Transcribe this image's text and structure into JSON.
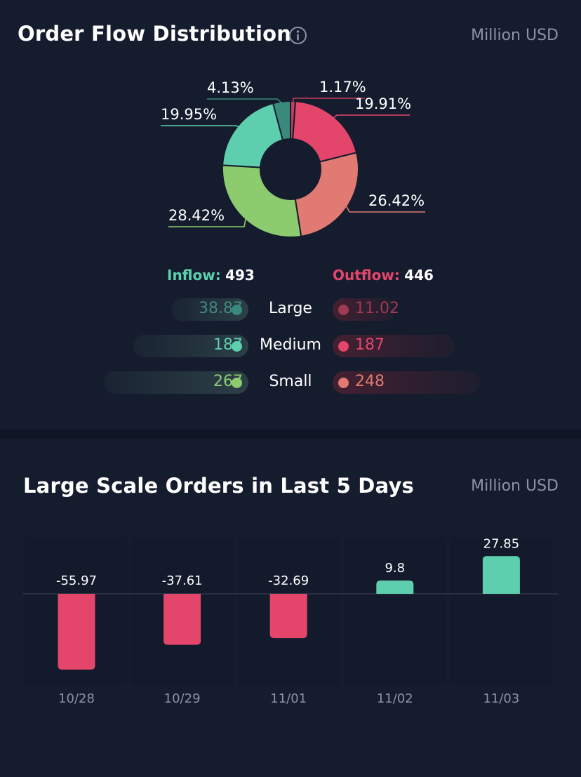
{
  "header1": {
    "title": "Order Flow Distribution",
    "unit": "Million USD",
    "info_icon": "info-circle-icon"
  },
  "header2": {
    "title": "Large Scale Orders in Last 5 Days",
    "unit": "Million USD"
  },
  "flow": {
    "inflow_label": "Inflow:",
    "inflow_value": "493",
    "outflow_label": "Outflow:",
    "outflow_value": "446",
    "rows": [
      {
        "label": "Large",
        "inflow": "38.87",
        "outflow": "11.02",
        "in_color": "#3a8a7c",
        "out_color": "#a03a52",
        "in_text": "#3f8a7f",
        "out_text": "#9e3a52"
      },
      {
        "label": "Medium",
        "inflow": "187",
        "outflow": "187",
        "in_color": "#5ecfae",
        "out_color": "#e4466b",
        "in_text": "#5ecfae",
        "out_text": "#e4466b"
      },
      {
        "label": "Small",
        "inflow": "267",
        "outflow": "248",
        "in_color": "#8ccb6e",
        "out_color": "#e07a72",
        "in_text": "#8ccb6e",
        "out_text": "#e07a72"
      }
    ]
  },
  "chart_data": [
    {
      "type": "pie",
      "donut": true,
      "slices": [
        {
          "label": "1.17%",
          "value": 1.17,
          "color": "#c63c5a"
        },
        {
          "label": "19.91%",
          "value": 19.91,
          "color": "#e4466b"
        },
        {
          "label": "26.42%",
          "value": 26.42,
          "color": "#e07a72"
        },
        {
          "label": "28.42%",
          "value": 28.42,
          "color": "#8ccb6e"
        },
        {
          "label": "19.95%",
          "value": 19.95,
          "color": "#5ecfae"
        },
        {
          "label": "4.13%",
          "value": 4.13,
          "color": "#3a8a7c"
        }
      ]
    },
    {
      "type": "bar",
      "categories": [
        "10/28",
        "10/29",
        "11/01",
        "11/02",
        "11/03"
      ],
      "values": [
        -55.97,
        -37.61,
        -32.69,
        9.8,
        27.85
      ],
      "value_labels": [
        "-55.97",
        "-37.61",
        "-32.69",
        "9.8",
        "27.85"
      ],
      "positive_color": "#5ecfae",
      "negative_color": "#e4466b"
    }
  ]
}
